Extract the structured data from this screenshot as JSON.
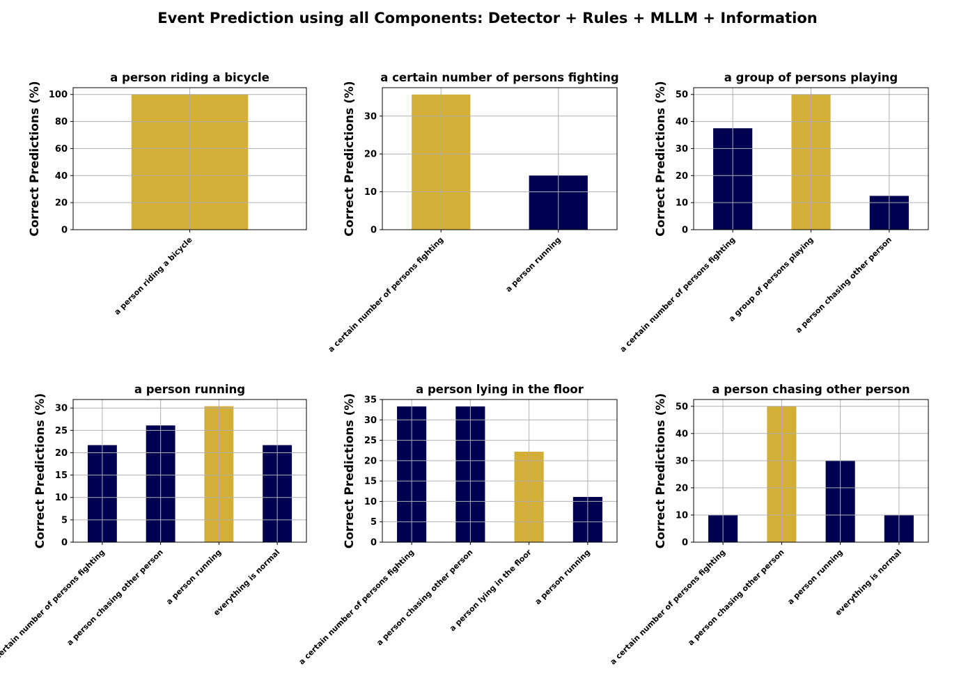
{
  "figure": {
    "title": "Event Prediction using all Components: Detector + Rules + MLLM + Information"
  },
  "colors": {
    "highlight": "#D4AF37",
    "other": "#000050",
    "grid": "#b0b0b0",
    "axis": "#000000"
  },
  "chart_data": [
    {
      "type": "bar",
      "title": "a person riding a bicycle",
      "ylabel": "Correct Predictions (%)",
      "categories": [
        "a person riding a bicycle"
      ],
      "values": [
        100
      ],
      "highlight": "a person riding a bicycle",
      "ylim": [
        0,
        105
      ],
      "yticks": [
        0,
        20,
        40,
        60,
        80,
        100
      ],
      "grid": true
    },
    {
      "type": "bar",
      "title": "a certain number of persons fighting",
      "ylabel": "Correct Predictions (%)",
      "categories": [
        "a certain number of persons fighting",
        "a person running"
      ],
      "values": [
        35.7,
        14.3
      ],
      "highlight": "a certain number of persons fighting",
      "ylim": [
        0,
        37.5
      ],
      "yticks": [
        0,
        10,
        20,
        30
      ],
      "grid": true
    },
    {
      "type": "bar",
      "title": "a group of persons playing",
      "ylabel": "Correct Predictions (%)",
      "categories": [
        "a certain number of persons fighting",
        "a group of persons playing",
        "a person chasing other person"
      ],
      "values": [
        37.5,
        50,
        12.5
      ],
      "highlight": "a group of persons playing",
      "ylim": [
        0,
        52.5
      ],
      "yticks": [
        0,
        10,
        20,
        30,
        40,
        50
      ],
      "grid": true
    },
    {
      "type": "bar",
      "title": "a person running",
      "ylabel": "Correct Predictions (%)",
      "categories": [
        "a certain number of persons fighting",
        "a person chasing other person",
        "a person running",
        "everything is normal"
      ],
      "values": [
        21.7,
        26.1,
        30.4,
        21.7
      ],
      "highlight": "a person running",
      "ylim": [
        0,
        31.9
      ],
      "yticks": [
        0,
        5,
        10,
        15,
        20,
        25,
        30
      ],
      "grid": true
    },
    {
      "type": "bar",
      "title": "a person lying in the floor",
      "ylabel": "Correct Predictions (%)",
      "categories": [
        "a certain number of persons fighting",
        "a person chasing other person",
        "a person lying in the floor",
        "a person running"
      ],
      "values": [
        33.3,
        33.3,
        22.2,
        11.1
      ],
      "highlight": "a person lying in the floor",
      "ylim": [
        0,
        35
      ],
      "yticks": [
        0,
        5,
        10,
        15,
        20,
        25,
        30,
        35
      ],
      "grid": true
    },
    {
      "type": "bar",
      "title": "a person chasing other person",
      "ylabel": "Correct Predictions (%)",
      "categories": [
        "a certain number of persons fighting",
        "a person chasing other person",
        "a person running",
        "everything is normal"
      ],
      "values": [
        10,
        50,
        30,
        10
      ],
      "highlight": "a person chasing other person",
      "ylim": [
        0,
        52.5
      ],
      "yticks": [
        0,
        10,
        20,
        30,
        40,
        50
      ],
      "grid": true
    }
  ]
}
